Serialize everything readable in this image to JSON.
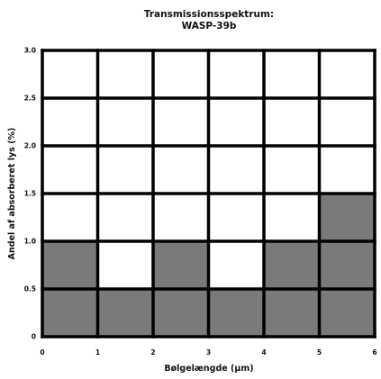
{
  "chart_data": {
    "type": "bar",
    "title_lines": [
      "Transmissionsspektrum:",
      "WASP-39b"
    ],
    "xlabel": "Bølgelængde (μm)",
    "ylabel": "Andel af absorberet lys (%)",
    "x_ticks": [
      "0",
      "1",
      "2",
      "3",
      "4",
      "5",
      "6"
    ],
    "y_ticks": [
      "0",
      "0.5",
      "1.0",
      "1.5",
      "2.0",
      "2.5",
      "3.0"
    ],
    "xlim": [
      0,
      6
    ],
    "ylim": [
      0,
      3.0
    ],
    "bin_edges": [
      0,
      1,
      2,
      3,
      4,
      5,
      6
    ],
    "values": [
      1.0,
      0.5,
      1.0,
      0.5,
      1.0,
      1.5
    ],
    "grid": true,
    "colors": {
      "bar": "#7a7a7a",
      "grid": "#000000",
      "background": "#ffffff"
    }
  }
}
